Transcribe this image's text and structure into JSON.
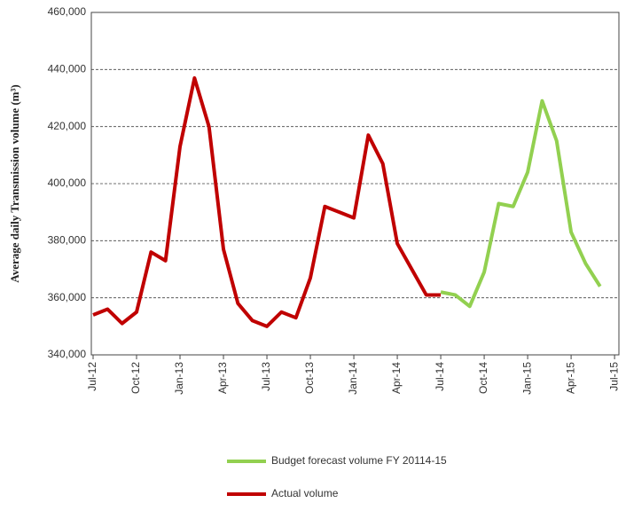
{
  "chart_data": {
    "type": "line",
    "y_label": "Average daily Transmission volume (m³)",
    "categories": [
      "Jul-12",
      null,
      null,
      "Oct-12",
      null,
      null,
      "Jan-13",
      null,
      null,
      "Apr-13",
      null,
      null,
      "Jul-13",
      null,
      null,
      "Oct-13",
      null,
      null,
      "Jan-14",
      null,
      null,
      "Apr-14",
      null,
      null,
      "Jul-14",
      null,
      null,
      "Oct-14",
      null,
      null,
      "Jan-15",
      null,
      null,
      "Apr-15",
      null,
      null,
      "Jul-15"
    ],
    "series": [
      {
        "name": "Budget forecast volume FY 20114-15",
        "color": "#92d050",
        "values": [
          null,
          null,
          null,
          null,
          null,
          null,
          null,
          null,
          null,
          null,
          null,
          null,
          null,
          null,
          null,
          null,
          null,
          null,
          null,
          null,
          null,
          null,
          null,
          null,
          362000,
          361000,
          357000,
          369000,
          393000,
          392000,
          404000,
          429000,
          415000,
          383000,
          372000,
          364000,
          null
        ]
      },
      {
        "name": "Actual volume",
        "color": "#c00000",
        "values": [
          354000,
          356000,
          351000,
          355000,
          376000,
          373000,
          413000,
          437000,
          420000,
          377000,
          358000,
          352000,
          350000,
          355000,
          353000,
          367000,
          392000,
          390000,
          388000,
          417000,
          407000,
          379000,
          370000,
          361000,
          361000,
          null,
          null,
          null,
          null,
          null,
          null,
          null,
          null,
          null,
          null,
          null,
          null
        ]
      }
    ],
    "ylim": [
      340000,
      460000
    ],
    "yticks": [
      {
        "value": 340000,
        "label": "340,000"
      },
      {
        "value": 360000,
        "label": "360,000"
      },
      {
        "value": 380000,
        "label": "380,000"
      },
      {
        "value": 400000,
        "label": "400,000"
      },
      {
        "value": 420000,
        "label": "420,000"
      },
      {
        "value": 440000,
        "label": "440,000"
      },
      {
        "value": 460000,
        "label": "460,000"
      }
    ],
    "grid": true
  }
}
